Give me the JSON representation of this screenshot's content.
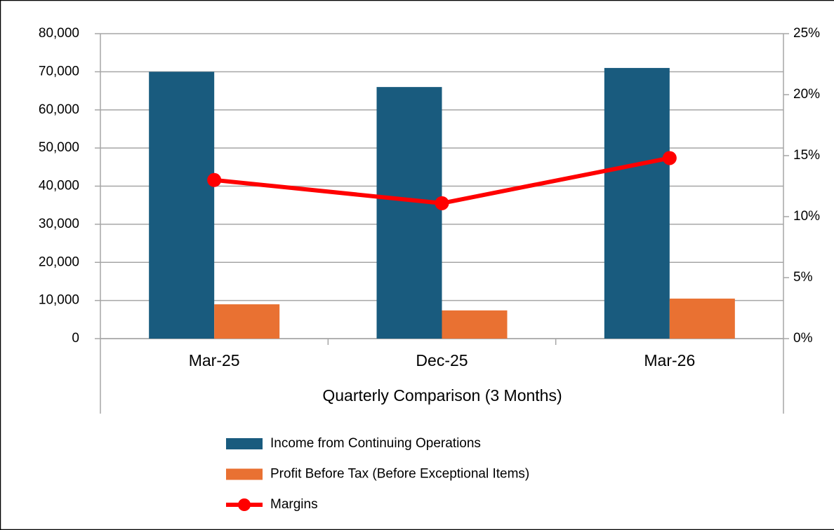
{
  "chart_data": {
    "type": "bar_line",
    "x_label": "Quarterly Comparison (3 Months)",
    "categories": [
      "Mar-25",
      "Dec-25",
      "Mar-26"
    ],
    "series": [
      {
        "name": "Income from Continuing Operations",
        "type": "bar",
        "color": "#195b7e",
        "values": [
          70000,
          66000,
          71000
        ]
      },
      {
        "name": "Profit Before Tax (Before Exceptional Items)",
        "type": "bar",
        "color": "#e97132",
        "values": [
          9000,
          7400,
          10500
        ]
      },
      {
        "name": "Margins",
        "type": "line",
        "axis": "y2",
        "color": "#ff0000",
        "values": [
          13.0,
          11.1,
          14.8
        ]
      }
    ],
    "ylim": [
      0,
      80000
    ],
    "yticks": [
      0,
      {
        "value": 10000,
        "label": "10,000"
      },
      {
        "value": 20000,
        "label": "20,000"
      },
      {
        "value": 30000,
        "label": "30,000"
      },
      {
        "value": 40000,
        "label": "40,000"
      },
      {
        "value": 50000,
        "label": "50,000"
      },
      {
        "value": 60000,
        "label": "60,000"
      },
      {
        "value": 70000,
        "label": "70,000"
      },
      {
        "value": 80000,
        "label": "80,000"
      }
    ],
    "y2lim": [
      0,
      25
    ],
    "y2ticks": [
      {
        "value": 0,
        "label": "0%"
      },
      {
        "value": 5,
        "label": "5%"
      },
      {
        "value": 10,
        "label": "10%"
      },
      {
        "value": 15,
        "label": "15%"
      },
      {
        "value": 20,
        "label": "20%"
      },
      {
        "value": 25,
        "label": "25%"
      }
    ],
    "grid": true,
    "legend": "bottom"
  }
}
